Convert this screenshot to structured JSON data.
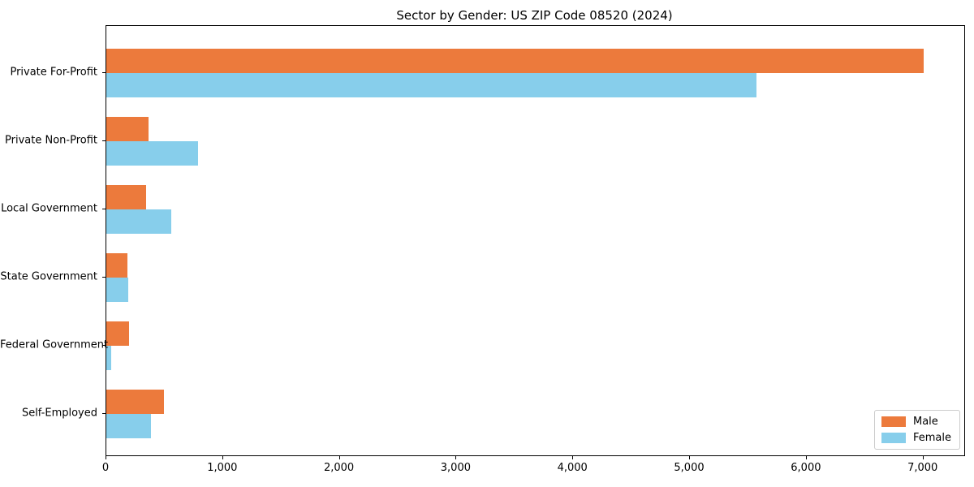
{
  "chart_data": {
    "type": "bar",
    "orientation": "horizontal",
    "title": "Sector by Gender: US ZIP Code 08520 (2024)",
    "categories": [
      "Private For-Profit",
      "Private Non-Profit",
      "Local Government",
      "State Government",
      "Federal Government",
      "Self-Employed"
    ],
    "series": [
      {
        "name": "Male",
        "color": "#EC7A3C",
        "values": [
          7000,
          360,
          340,
          180,
          195,
          490
        ]
      },
      {
        "name": "Female",
        "color": "#87CEEB",
        "values": [
          5570,
          785,
          555,
          190,
          40,
          385
        ]
      }
    ],
    "xlim": [
      0,
      7350
    ],
    "xticks": [
      0,
      1000,
      2000,
      3000,
      4000,
      5000,
      6000,
      7000
    ],
    "xtick_labels": [
      "0",
      "1,000",
      "2,000",
      "3,000",
      "4,000",
      "5,000",
      "6,000",
      "7,000"
    ],
    "ylabel": "",
    "xlabel": "",
    "grid": false,
    "legend": {
      "position": "lower right",
      "entries": [
        "Male",
        "Female"
      ]
    }
  }
}
